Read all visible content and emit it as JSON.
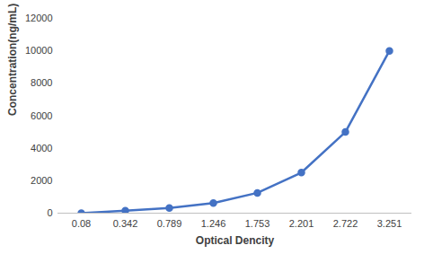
{
  "chart_data": {
    "type": "line",
    "x_label": "Optical Dencity",
    "y_label": "Concentration(ng/mL)",
    "categories": [
      "0.08",
      "0.342",
      "0.789",
      "1.246",
      "1.753",
      "2.201",
      "2.722",
      "3.251"
    ],
    "values": [
      0,
      156,
      312,
      625,
      1250,
      2500,
      5000,
      10000
    ],
    "color": "#4472c4",
    "marker": "circle",
    "ylim": [
      0,
      12000
    ],
    "yticks": [
      0,
      2000,
      4000,
      6000,
      8000,
      10000,
      12000
    ],
    "grid": false
  }
}
